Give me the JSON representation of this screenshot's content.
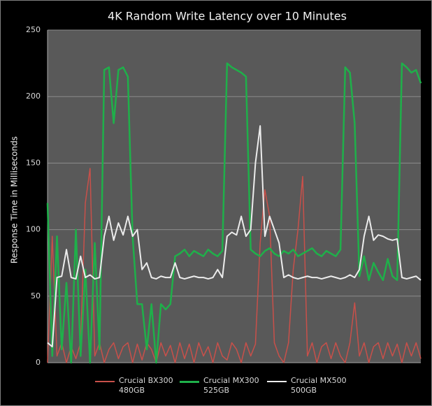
{
  "chart_data": {
    "type": "line",
    "title": "4K Random Write Latency over 10 Minutes",
    "y_label": "Response Time in Milliseconds",
    "ylim": [
      0,
      250
    ],
    "yticks": [
      0,
      50,
      100,
      150,
      200,
      250
    ],
    "grid": true,
    "legend": "bottom",
    "series": [
      {
        "name": "Crucial BX300 480GB",
        "color": "#c9504a",
        "values": [
          0,
          95,
          5,
          15,
          0,
          12,
          3,
          15,
          120,
          146,
          5,
          15,
          0,
          10,
          15,
          3,
          12,
          15,
          0,
          14,
          2,
          15,
          10,
          0,
          15,
          5,
          13,
          0,
          15,
          3,
          14,
          0,
          15,
          5,
          12,
          0,
          15,
          5,
          2,
          15,
          10,
          0,
          15,
          5,
          14,
          90,
          130,
          110,
          15,
          5,
          0,
          15,
          70,
          100,
          140,
          5,
          15,
          0,
          12,
          15,
          3,
          15,
          5,
          0,
          15,
          45,
          5,
          15,
          0,
          12,
          15,
          3,
          15,
          5,
          14,
          0,
          15,
          5,
          15,
          3
        ]
      },
      {
        "name": "Crucial MX300 525GB",
        "color": "#1fb04a",
        "values": [
          120,
          5,
          95,
          10,
          60,
          0,
          100,
          5,
          70,
          0,
          90,
          10,
          220,
          222,
          180,
          220,
          222,
          215,
          95,
          44,
          44,
          10,
          44,
          0,
          44,
          40,
          44,
          80,
          82,
          85,
          80,
          84,
          82,
          80,
          85,
          82,
          80,
          84,
          225,
          222,
          220,
          218,
          215,
          85,
          82,
          80,
          84,
          86,
          82,
          80,
          84,
          82,
          85,
          80,
          82,
          84,
          86,
          82,
          80,
          84,
          82,
          80,
          85,
          222,
          218,
          180,
          65,
          80,
          62,
          75,
          68,
          62,
          78,
          65,
          62,
          225,
          222,
          218,
          220,
          210
        ]
      },
      {
        "name": "Crucial MX500 500GB",
        "color": "#ececec",
        "values": [
          15,
          12,
          64,
          65,
          85,
          64,
          63,
          80,
          64,
          66,
          63,
          64,
          95,
          110,
          92,
          105,
          96,
          110,
          95,
          100,
          70,
          75,
          64,
          63,
          65,
          64,
          64,
          75,
          64,
          63,
          64,
          65,
          64,
          64,
          63,
          64,
          70,
          64,
          95,
          98,
          96,
          110,
          95,
          100,
          150,
          178,
          95,
          110,
          100,
          90,
          64,
          66,
          64,
          63,
          64,
          65,
          64,
          64,
          63,
          64,
          65,
          64,
          63,
          64,
          66,
          64,
          70,
          95,
          110,
          92,
          96,
          95,
          93,
          92,
          93,
          64,
          63,
          64,
          65,
          62
        ]
      }
    ]
  }
}
